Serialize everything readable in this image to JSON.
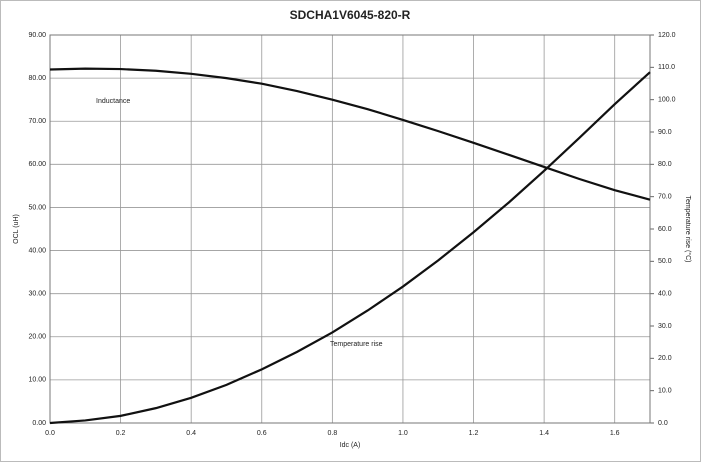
{
  "chart_data": {
    "type": "line",
    "title": "SDCHA1V6045-820-R",
    "xlabel": "Idc (A)",
    "ylabel": "OCL (uH)",
    "y2label": "Temperature rise (°C)",
    "annotations": [
      "Inductance",
      "Temperature rise"
    ],
    "x": [
      0,
      0.1,
      0.2,
      0.3,
      0.4,
      0.5,
      0.6,
      0.7,
      0.8,
      0.9,
      1.0,
      1.1,
      1.2,
      1.3,
      1.4,
      1.5,
      1.6,
      1.7
    ],
    "series": [
      {
        "name": "Inductance",
        "color": "#111111",
        "axis": "y",
        "values": [
          82.0,
          82.2,
          82.1,
          81.7,
          81.0,
          80.0,
          78.7,
          77.0,
          75.0,
          72.8,
          70.3,
          67.7,
          65.0,
          62.2,
          59.4,
          56.6,
          54.0,
          51.8
        ]
      },
      {
        "name": "Temperature rise",
        "color": "#111111",
        "axis": "y2",
        "values": [
          0,
          0.8,
          2.2,
          4.6,
          7.8,
          11.8,
          16.6,
          22.0,
          28.0,
          34.8,
          42.2,
          50.3,
          59.0,
          68.2,
          78.0,
          88.2,
          98.6,
          108.5
        ]
      }
    ],
    "xlim": [
      0,
      1.7
    ],
    "xticks": [
      {
        "value": 0,
        "label": "0.0"
      },
      {
        "value": 0.2,
        "label": "0.2"
      },
      {
        "value": 0.4,
        "label": "0.4"
      },
      {
        "value": 0.6,
        "label": "0.6"
      },
      {
        "value": 0.8,
        "label": "0.8"
      },
      {
        "value": 1.0,
        "label": "1.0"
      },
      {
        "value": 1.2,
        "label": "1.2"
      },
      {
        "value": 1.4,
        "label": "1.4"
      },
      {
        "value": 1.6,
        "label": "1.6"
      }
    ],
    "ylim": [
      0,
      90
    ],
    "yticks": [
      {
        "value": 0,
        "label": "0.00"
      },
      {
        "value": 10,
        "label": "10.00"
      },
      {
        "value": 20,
        "label": "20.00"
      },
      {
        "value": 30,
        "label": "30.00"
      },
      {
        "value": 40,
        "label": "40.00"
      },
      {
        "value": 50,
        "label": "50.00"
      },
      {
        "value": 60,
        "label": "60.00"
      },
      {
        "value": 70,
        "label": "70.00"
      },
      {
        "value": 80,
        "label": "80.00"
      },
      {
        "value": 90,
        "label": "90.00"
      }
    ],
    "y2lim": [
      0,
      120
    ],
    "y2ticks": [
      {
        "value": 0,
        "label": "0.0"
      },
      {
        "value": 10,
        "label": "10.0"
      },
      {
        "value": 20,
        "label": "20.0"
      },
      {
        "value": 30,
        "label": "30.0"
      },
      {
        "value": 40,
        "label": "40.0"
      },
      {
        "value": 50,
        "label": "50.0"
      },
      {
        "value": 60,
        "label": "60.0"
      },
      {
        "value": 70,
        "label": "70.0"
      },
      {
        "value": 80,
        "label": "80.0"
      },
      {
        "value": 90,
        "label": "90.0"
      },
      {
        "value": 100,
        "label": "100.0"
      },
      {
        "value": 110,
        "label": "110.0"
      },
      {
        "value": 120,
        "label": "120.0"
      }
    ],
    "grid": true
  }
}
